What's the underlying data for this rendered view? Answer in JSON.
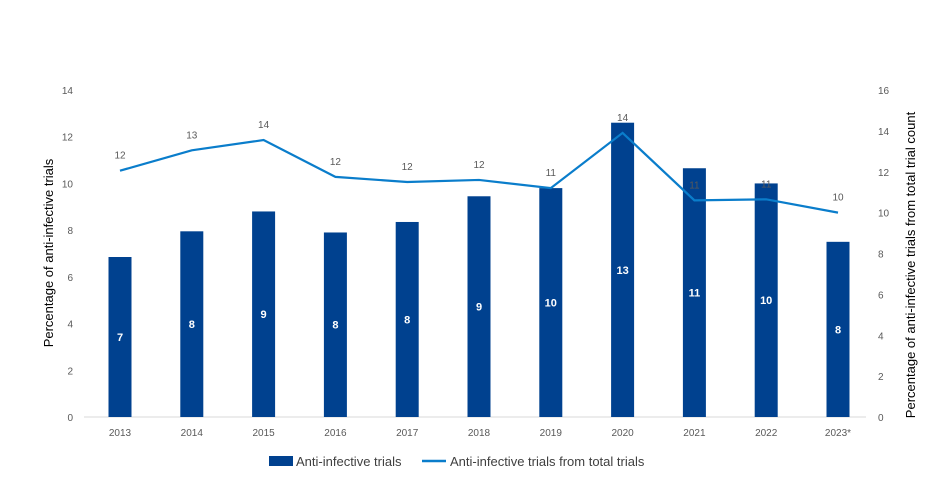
{
  "chart_data": {
    "type": "bar+line",
    "title": "",
    "categories": [
      "2013",
      "2014",
      "2015",
      "2016",
      "2017",
      "2018",
      "2019",
      "2020",
      "2021",
      "2022",
      "2023*"
    ],
    "series": [
      {
        "name": "Anti-infective trials",
        "type": "bar",
        "axis": "left",
        "color": "#00418F",
        "values": [
          6.85,
          7.95,
          8.8,
          7.9,
          8.35,
          9.45,
          9.8,
          12.6,
          10.65,
          10.0,
          7.5
        ],
        "labels": [
          "7",
          "8",
          "9",
          "8",
          "8",
          "9",
          "10",
          "13",
          "11",
          "10",
          "8"
        ]
      },
      {
        "name": "Anti-infective trials from total trials",
        "type": "line",
        "axis": "right",
        "color": "#0A7DCB",
        "values": [
          12.05,
          13.05,
          13.55,
          11.75,
          11.5,
          11.6,
          11.2,
          13.9,
          10.6,
          10.65,
          10.0
        ],
        "labels": [
          "12",
          "13",
          "14",
          "12",
          "12",
          "12",
          "11",
          "14",
          "11",
          "11",
          "10"
        ]
      }
    ],
    "ylabel": "Percentage of anti-infective trials",
    "y2label": "Percentage of anti-infective trials from total trial count",
    "ylim": [
      0,
      14
    ],
    "y2lim": [
      0,
      16
    ],
    "yticks": [
      "0",
      "2",
      "4",
      "6",
      "8",
      "10",
      "12",
      "14"
    ],
    "y2ticks": [
      "0",
      "2",
      "4",
      "6",
      "8",
      "10",
      "12",
      "14",
      "16"
    ],
    "grid": false,
    "legend": "bottom"
  }
}
